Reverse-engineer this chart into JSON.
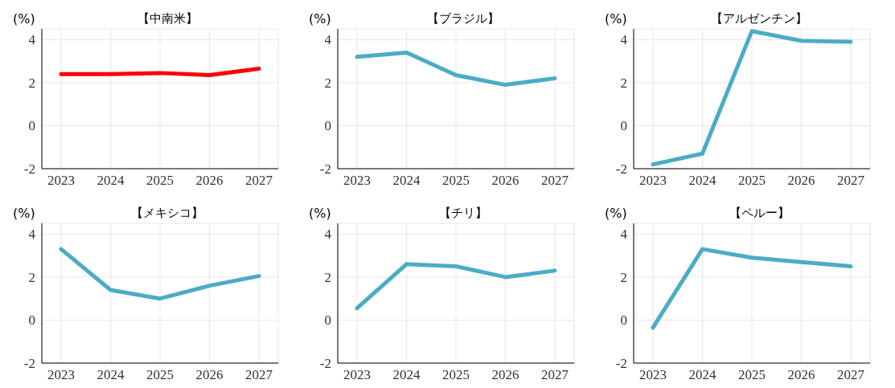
{
  "chart_data": [
    {
      "type": "line",
      "title": "【中南米】",
      "ylabel": "(%)",
      "categories": [
        "2023",
        "2024",
        "2025",
        "2026",
        "2027"
      ],
      "ylim": [
        -2,
        4.5
      ],
      "yticks": [
        -2,
        0,
        2,
        4
      ],
      "grid": true,
      "series": [
        {
          "color": "#ff0000",
          "values": [
            2.4,
            2.4,
            2.45,
            2.35,
            2.65
          ]
        }
      ]
    },
    {
      "type": "line",
      "title": "【ブラジル】",
      "ylabel": "(%)",
      "categories": [
        "2023",
        "2024",
        "2025",
        "2026",
        "2027"
      ],
      "ylim": [
        -2,
        4.5
      ],
      "yticks": [
        -2,
        0,
        2,
        4
      ],
      "grid": true,
      "series": [
        {
          "color": "#4bacc6",
          "values": [
            3.2,
            3.4,
            2.35,
            1.9,
            2.2
          ]
        }
      ]
    },
    {
      "type": "line",
      "title": "【アルゼンチン】",
      "ylabel": "(%)",
      "categories": [
        "2023",
        "2024",
        "2025",
        "2026",
        "2027"
      ],
      "ylim": [
        -2,
        4.5
      ],
      "yticks": [
        -2,
        0,
        2,
        4
      ],
      "grid": true,
      "series": [
        {
          "color": "#4bacc6",
          "values": [
            -1.8,
            -1.3,
            4.4,
            3.95,
            3.9
          ]
        }
      ]
    },
    {
      "type": "line",
      "title": "【メキシコ】",
      "ylabel": "(%)",
      "categories": [
        "2023",
        "2024",
        "2025",
        "2026",
        "2027"
      ],
      "ylim": [
        -2,
        4.5
      ],
      "yticks": [
        -2,
        0,
        2,
        4
      ],
      "grid": true,
      "series": [
        {
          "color": "#4bacc6",
          "values": [
            3.3,
            1.4,
            1.0,
            1.6,
            2.05
          ]
        }
      ]
    },
    {
      "type": "line",
      "title": "【チリ】",
      "ylabel": "(%)",
      "categories": [
        "2023",
        "2024",
        "2025",
        "2026",
        "2027"
      ],
      "ylim": [
        -2,
        4.5
      ],
      "yticks": [
        -2,
        0,
        2,
        4
      ],
      "grid": true,
      "series": [
        {
          "color": "#4bacc6",
          "values": [
            0.55,
            2.6,
            2.5,
            2.0,
            2.3
          ]
        }
      ]
    },
    {
      "type": "line",
      "title": "【ペルー】",
      "ylabel": "(%)",
      "categories": [
        "2023",
        "2024",
        "2025",
        "2026",
        "2027"
      ],
      "ylim": [
        -2,
        4.5
      ],
      "yticks": [
        -2,
        0,
        2,
        4
      ],
      "grid": true,
      "series": [
        {
          "color": "#4bacc6",
          "values": [
            -0.35,
            3.3,
            2.9,
            2.7,
            2.5
          ]
        }
      ]
    }
  ]
}
